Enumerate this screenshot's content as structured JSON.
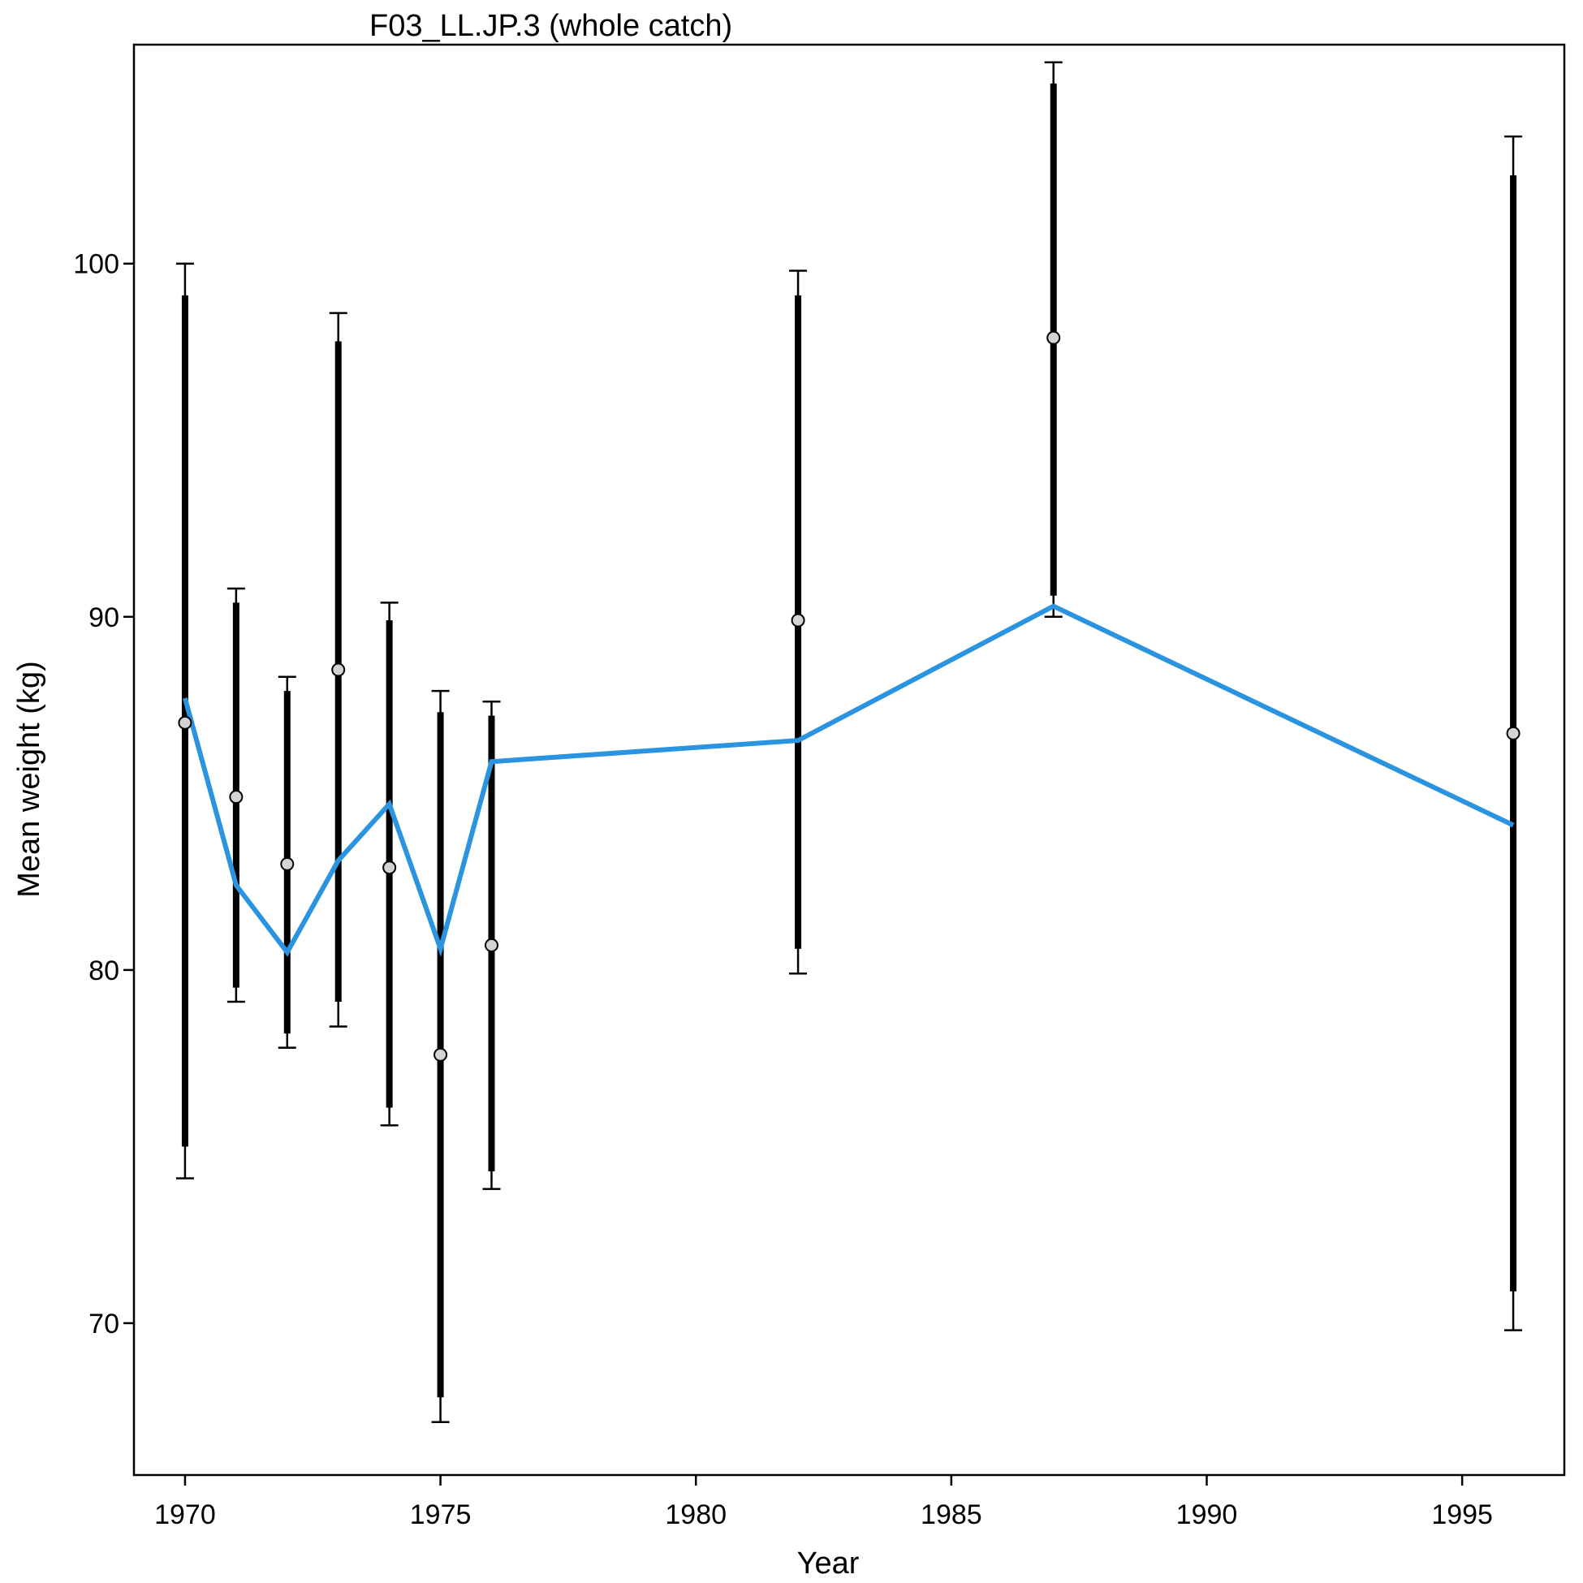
{
  "chart_data": {
    "type": "scatter",
    "title": "F03_LL.JP.3 (whole catch)",
    "xlabel": "Year",
    "ylabel": "Mean weight (kg)",
    "xlim": [
      1969,
      1997
    ],
    "ylim": [
      65.7,
      106.2
    ],
    "x_ticks": [
      1970,
      1975,
      1980,
      1985,
      1990,
      1995
    ],
    "y_ticks": [
      70,
      80,
      90,
      100
    ],
    "grid": false,
    "legend": "none",
    "series": [
      {
        "kind": "observed",
        "color": "#000000",
        "marker_fill": "#d3d3d3",
        "points": [
          {
            "x": 1970,
            "y": 87.0,
            "inner": [
              75.0,
              99.1
            ],
            "outer": [
              74.1,
              100.0
            ]
          },
          {
            "x": 1971,
            "y": 84.9,
            "inner": [
              79.5,
              90.4
            ],
            "outer": [
              79.1,
              90.8
            ]
          },
          {
            "x": 1972,
            "y": 83.0,
            "inner": [
              78.2,
              87.9
            ],
            "outer": [
              77.8,
              88.3
            ]
          },
          {
            "x": 1973,
            "y": 88.5,
            "inner": [
              79.1,
              97.8
            ],
            "outer": [
              78.4,
              98.6
            ]
          },
          {
            "x": 1974,
            "y": 82.9,
            "inner": [
              76.1,
              89.9
            ],
            "outer": [
              75.6,
              90.4
            ]
          },
          {
            "x": 1975,
            "y": 77.6,
            "inner": [
              67.9,
              87.3
            ],
            "outer": [
              67.2,
              87.9
            ]
          },
          {
            "x": 1976,
            "y": 80.7,
            "inner": [
              74.3,
              87.2
            ],
            "outer": [
              73.8,
              87.6
            ]
          },
          {
            "x": 1982,
            "y": 89.9,
            "inner": [
              80.6,
              99.1
            ],
            "outer": [
              79.9,
              99.8
            ]
          },
          {
            "x": 1987,
            "y": 97.9,
            "inner": [
              90.6,
              105.1
            ],
            "outer": [
              90.0,
              105.7
            ]
          },
          {
            "x": 1996,
            "y": 86.7,
            "inner": [
              70.9,
              102.5
            ],
            "outer": [
              69.8,
              103.6
            ]
          }
        ]
      },
      {
        "kind": "predicted",
        "color": "#2b94e0",
        "points": [
          {
            "x": 1970,
            "y": 87.7
          },
          {
            "x": 1971,
            "y": 82.4
          },
          {
            "x": 1972,
            "y": 80.5
          },
          {
            "x": 1973,
            "y": 83.1
          },
          {
            "x": 1974,
            "y": 84.7
          },
          {
            "x": 1975,
            "y": 80.6
          },
          {
            "x": 1976,
            "y": 85.9
          },
          {
            "x": 1982,
            "y": 86.5
          },
          {
            "x": 1987,
            "y": 90.3
          },
          {
            "x": 1996,
            "y": 84.1
          }
        ]
      }
    ]
  }
}
